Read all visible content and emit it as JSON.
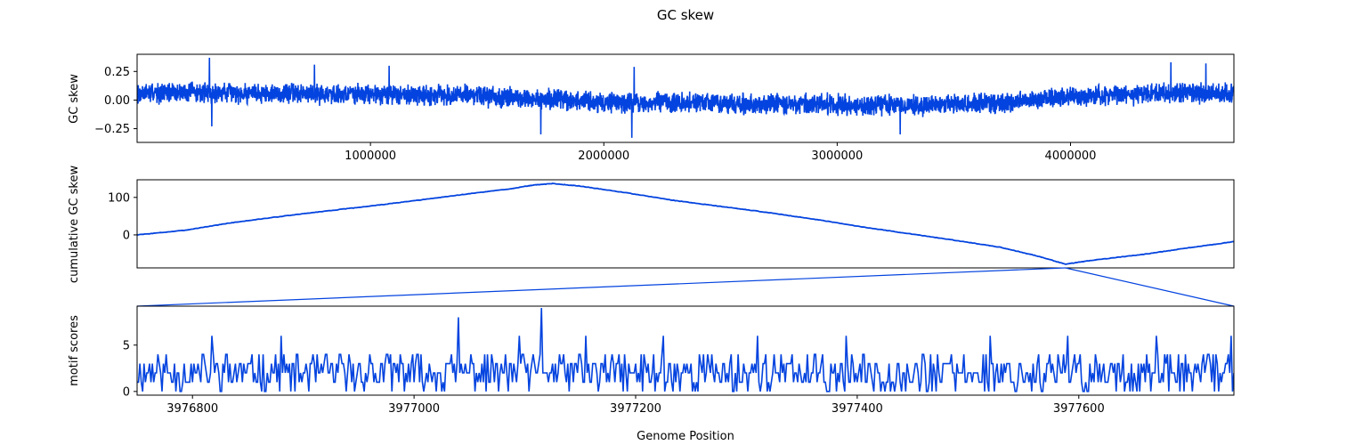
{
  "figure": {
    "title": "GC skew",
    "line_color": "#0343df",
    "connector_color": "#0343df"
  },
  "chart_data": [
    {
      "type": "line",
      "name": "gc-skew",
      "title": "",
      "xlabel": "",
      "ylabel": "GC skew",
      "xlim": [
        1,
        4700000
      ],
      "ylim": [
        -0.37,
        0.4
      ],
      "xticks": [
        1000000,
        2000000,
        3000000,
        4000000
      ],
      "xtick_labels": [
        "1000000",
        "2000000",
        "3000000",
        "4000000"
      ],
      "yticks": [
        0.25,
        0.0,
        -0.25
      ],
      "ytick_labels": [
        "0.25",
        "0.00",
        "−0.25"
      ],
      "grid": false,
      "series": [
        {
          "x_start": 1,
          "x_end": 4700000,
          "points": 4700,
          "envelope": [
            [
              0,
              0.06
            ],
            [
              200000,
              0.07
            ],
            [
              600000,
              0.06
            ],
            [
              1000000,
              0.05
            ],
            [
              1400000,
              0.04
            ],
            [
              1700000,
              0.01
            ],
            [
              2000000,
              -0.02
            ],
            [
              2500000,
              -0.03
            ],
            [
              3000000,
              -0.04
            ],
            [
              3300000,
              -0.05
            ],
            [
              3700000,
              -0.02
            ],
            [
              4000000,
              0.03
            ],
            [
              4400000,
              0.06
            ],
            [
              4700000,
              0.06
            ]
          ],
          "amplitude": 0.09,
          "noise_seed": 7,
          "spikes": [
            [
              310000,
              0.37
            ],
            [
              760000,
              0.31
            ],
            [
              1080000,
              0.3
            ],
            [
              2130000,
              0.29
            ],
            [
              4430000,
              0.33
            ],
            [
              4580000,
              0.32
            ],
            [
              320000,
              -0.23
            ],
            [
              1730000,
              -0.3
            ],
            [
              2120000,
              -0.33
            ],
            [
              3270000,
              -0.3
            ]
          ]
        }
      ]
    },
    {
      "type": "line",
      "name": "cumulative-gc-skew",
      "title": "",
      "xlabel": "",
      "ylabel": "cumulative GC skew",
      "xlim": [
        1,
        4700000
      ],
      "ylim": [
        -88,
        147
      ],
      "yticks": [
        100,
        0
      ],
      "ytick_labels": [
        "100",
        "0"
      ],
      "grid": false,
      "series": [
        {
          "points": [
            [
              1,
              0
            ],
            [
              200000,
              12
            ],
            [
              400000,
              32
            ],
            [
              600000,
              48
            ],
            [
              800000,
              63
            ],
            [
              1000000,
              77
            ],
            [
              1200000,
              92
            ],
            [
              1400000,
              108
            ],
            [
              1600000,
              123
            ],
            [
              1700000,
              133
            ],
            [
              1780000,
              137
            ],
            [
              1900000,
              130
            ],
            [
              2100000,
              112
            ],
            [
              2300000,
              92
            ],
            [
              2500000,
              76
            ],
            [
              2700000,
              60
            ],
            [
              2900000,
              42
            ],
            [
              3100000,
              22
            ],
            [
              3300000,
              4
            ],
            [
              3500000,
              -14
            ],
            [
              3700000,
              -33
            ],
            [
              3850000,
              -55
            ],
            [
              3977650,
              -78
            ],
            [
              4100000,
              -67
            ],
            [
              4300000,
              -53
            ],
            [
              4500000,
              -35
            ],
            [
              4700000,
              -18
            ]
          ]
        }
      ]
    },
    {
      "type": "line",
      "name": "motif-scores",
      "title": "",
      "xlabel": "Genome Position",
      "ylabel": "motif scores",
      "xlim": [
        3976750,
        3977740
      ],
      "ylim": [
        -0.4,
        9.2
      ],
      "xticks": [
        3976800,
        3977000,
        3977200,
        3977400,
        3977600
      ],
      "xtick_labels": [
        "3976800",
        "3977000",
        "3977200",
        "3977400",
        "3977600"
      ],
      "yticks": [
        5,
        0
      ],
      "ytick_labels": [
        "5",
        "0"
      ],
      "grid": false,
      "series": [
        {
          "x_start": 3976750,
          "x_end": 3977740,
          "step": 1.25,
          "baseline": 2.2,
          "noise_seed": 11,
          "range": [
            0,
            4
          ],
          "peaks": [
            [
              3976817,
              6
            ],
            [
              3976880,
              6
            ],
            [
              3977040,
              8
            ],
            [
              3977095,
              6
            ],
            [
              3977115,
              9
            ],
            [
              3977155,
              6
            ],
            [
              3977225,
              6
            ],
            [
              3977310,
              6
            ],
            [
              3977390,
              6
            ],
            [
              3977520,
              6
            ],
            [
              3977590,
              6
            ],
            [
              3977670,
              6
            ],
            [
              3977738,
              6
            ]
          ]
        }
      ]
    }
  ],
  "zoom_connector": {
    "from_axis": "cumulative-gc-skew",
    "to_axis": "motif-scores",
    "from_x": [
      3976750,
      3977740
    ]
  }
}
